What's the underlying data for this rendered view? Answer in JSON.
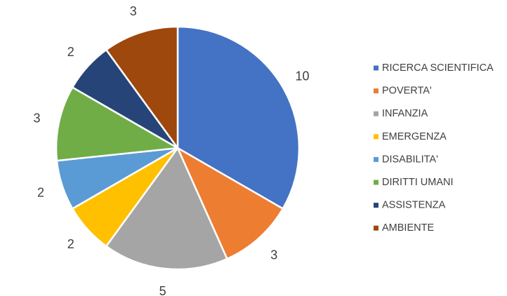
{
  "chart_data": {
    "type": "pie",
    "categories": [
      "RICERCA SCIENTIFICA",
      "POVERTA'",
      "INFANZIA",
      "EMERGENZA",
      "DISABILITA'",
      "DIRITTI UMANI",
      "ASSISTENZA",
      "AMBIENTE"
    ],
    "values": [
      10,
      3,
      5,
      2,
      2,
      3,
      2,
      3
    ],
    "colors": [
      "#4472C4",
      "#ED7D31",
      "#A5A5A5",
      "#FFC000",
      "#5B9BD5",
      "#70AD47",
      "#264478",
      "#9E480E"
    ],
    "legend_position": "right",
    "start_angle": "top, clockwise",
    "title": ""
  }
}
